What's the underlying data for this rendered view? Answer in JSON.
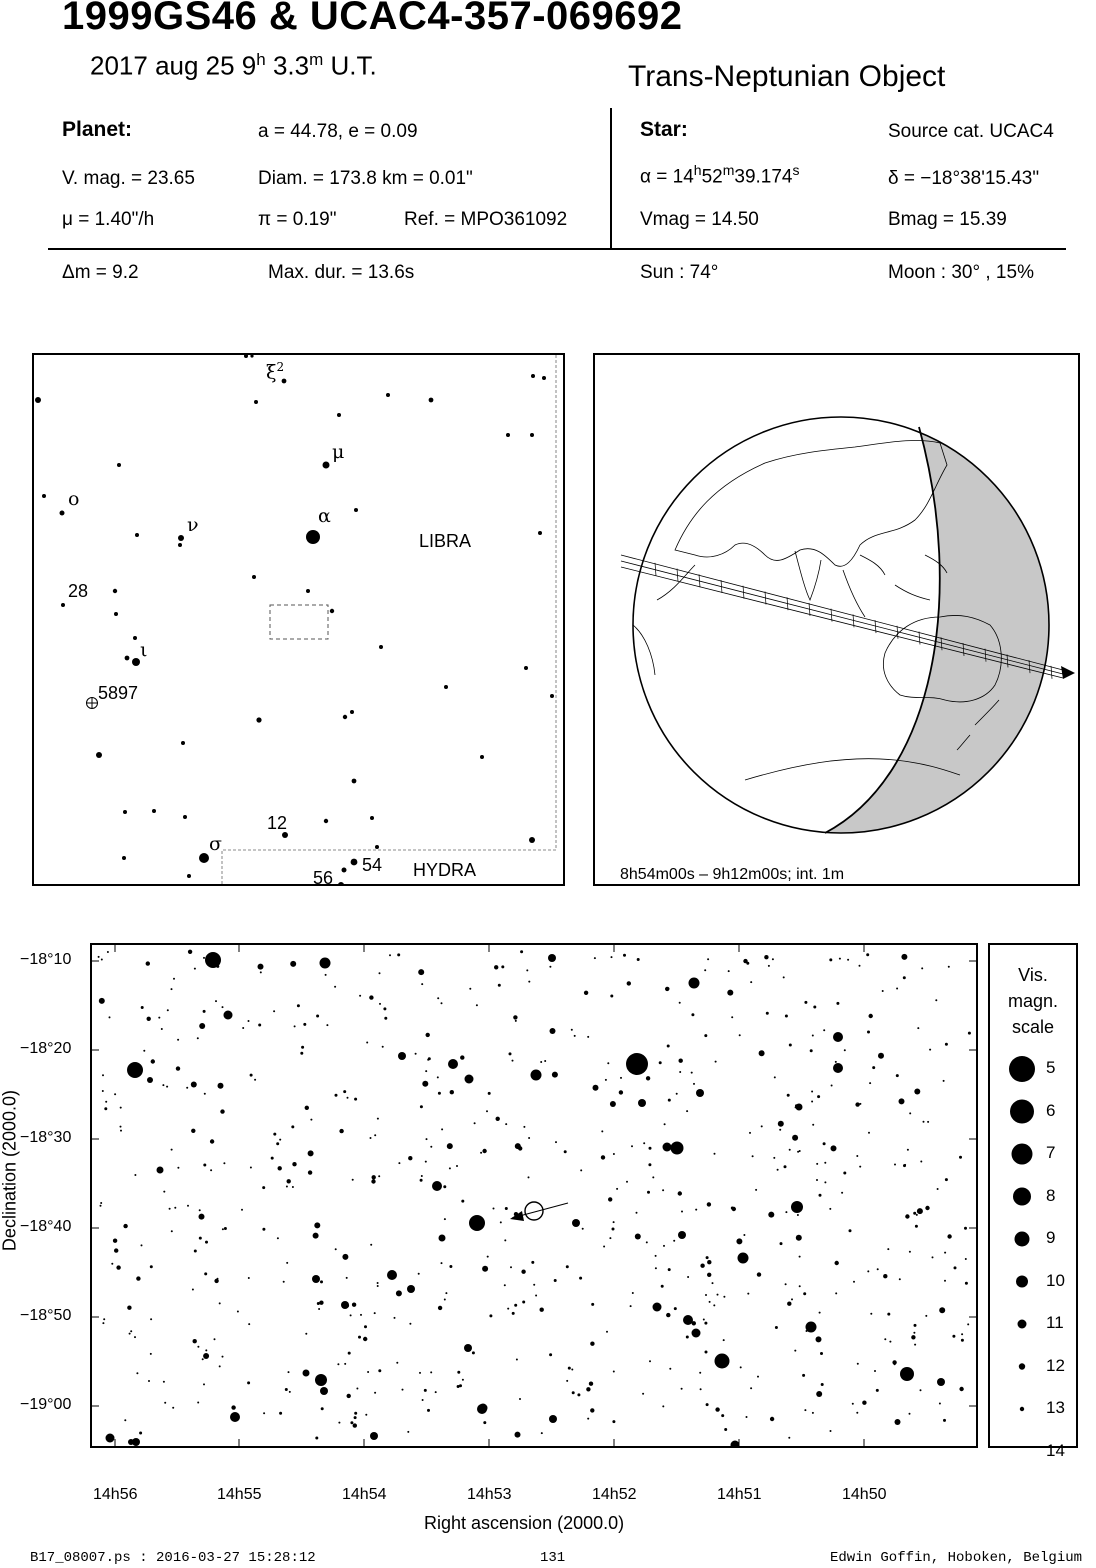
{
  "header": {
    "title": "1999GS46  &  UCAC4-357-069692",
    "date_main": "2017 aug 25   9",
    "date_h": "h",
    "date_min": " 3.3",
    "date_m": "m",
    "date_ut": " U.T.",
    "object_class": "Trans-Neptunian Object"
  },
  "planet": {
    "heading": "Planet:",
    "orbit": "a = 44.78, e = 0.09",
    "vmag": "V. mag. = 23.65",
    "diam": "Diam. = 173.8 km = 0.01\"",
    "mu": "μ =  1.40\"/h",
    "pi": "π =  0.19\"",
    "ref": "Ref. = MPO361092"
  },
  "star": {
    "heading": "Star:",
    "source": "Source cat.  UCAC4",
    "alpha_pre": "α = 14",
    "alpha_h": "h",
    "alpha_mid": "52",
    "alpha_m": "m",
    "alpha_sec": "39.174",
    "alpha_s": "s",
    "delta": "δ = −18°38'15.43\"",
    "vmag": "Vmag = 14.50",
    "bmag": "Bmag = 15.39"
  },
  "conditions": {
    "dm": "Δm = 9.2",
    "maxdur": "Max. dur. = 13.6s",
    "sun": "Sun :  74°",
    "moon": "Moon :  30° , 15%"
  },
  "finder": {
    "labels": {
      "xi2": "ξ",
      "xi2_sup": "2",
      "mu": "μ",
      "omicron": "ο",
      "nu": "ν",
      "alpha": "α",
      "libra": "LIBRA",
      "n28": "28",
      "iota": "ι",
      "n5897": "5897",
      "n12": "12",
      "sigma": "σ",
      "n54": "54",
      "n56": "56",
      "hydra": "HYDRA"
    }
  },
  "globe": {
    "time_range": "8h54m00s –  9h12m00s; int.  1m",
    "colors": {
      "night": "#c8c8c8",
      "line": "#000000"
    }
  },
  "starchart": {
    "y_ticks": [
      "−18°10",
      "−18°20",
      "−18°30",
      "−18°40",
      "−18°50",
      "−19°00"
    ],
    "x_ticks": [
      "14h56",
      "14h55",
      "14h54",
      "14h53",
      "14h52",
      "14h51",
      "14h50"
    ],
    "xlabel": "Right ascension (2000.0)",
    "ylabel": "Declination (2000.0)"
  },
  "legend": {
    "title1": "Vis.",
    "title2": "magn.",
    "title3": "scale",
    "mags": [
      "5",
      "6",
      "7",
      "8",
      "9",
      "10",
      "11",
      "12",
      "13",
      "14"
    ]
  },
  "footer": {
    "left": "B17_08007.ps : 2016-03-27 15:28:12",
    "center": "131",
    "right": "Edwin Goffin, Hoboken, Belgium"
  }
}
